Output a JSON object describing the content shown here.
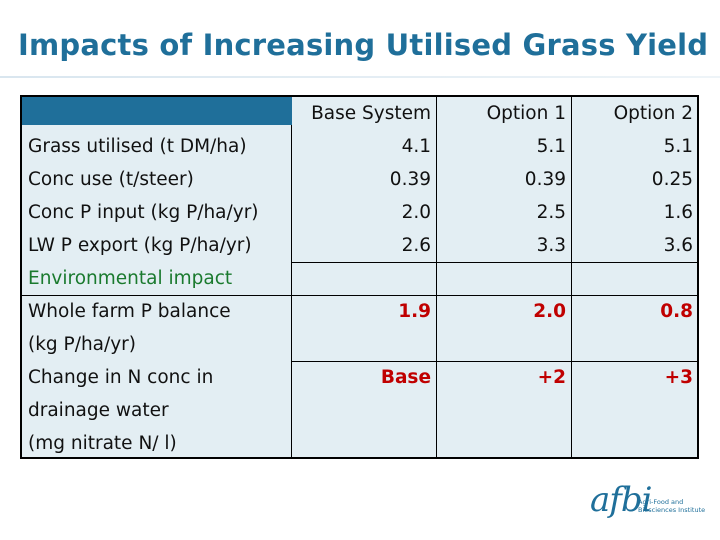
{
  "title": "Impacts of Increasing Utilised Grass Yield",
  "table": {
    "headers": [
      "",
      "Base System",
      "Option 1",
      "Option 2"
    ],
    "rows": [
      {
        "label": "Grass utilised (t DM/ha)",
        "values": [
          "4.1",
          "5.1",
          "5.1"
        ]
      },
      {
        "label": "Conc use (t/steer)",
        "values": [
          "0.39",
          "0.39",
          "0.25"
        ]
      },
      {
        "label": "Conc P input (kg P/ha/yr)",
        "values": [
          "2.0",
          "2.5",
          "1.6"
        ]
      },
      {
        "label": "LW P export (kg P/ha/yr)",
        "values": [
          "2.6",
          "3.3",
          "3.6"
        ]
      }
    ],
    "section_label": "Environmental impact",
    "impact_rows": [
      {
        "label_lines": [
          "Whole farm P balance",
          "(kg P/ha/yr)"
        ],
        "values": [
          "1.9",
          "2.0",
          "0.8"
        ]
      },
      {
        "label_lines": [
          "Change in N conc in",
          "drainage water",
          "(mg nitrate N/ l)"
        ],
        "values": [
          "Base",
          "+2",
          "+3"
        ]
      }
    ]
  },
  "logo": {
    "name": "afbi",
    "subtitle_lines": [
      "Agri-Food and",
      "Biosciences Institute"
    ]
  },
  "colors": {
    "title": "#1f6f9a",
    "header_bar": "#1f6f9a",
    "table_bg": "#e3eef3",
    "section_label": "#1a7a2e",
    "impact_values": "#c00000"
  }
}
